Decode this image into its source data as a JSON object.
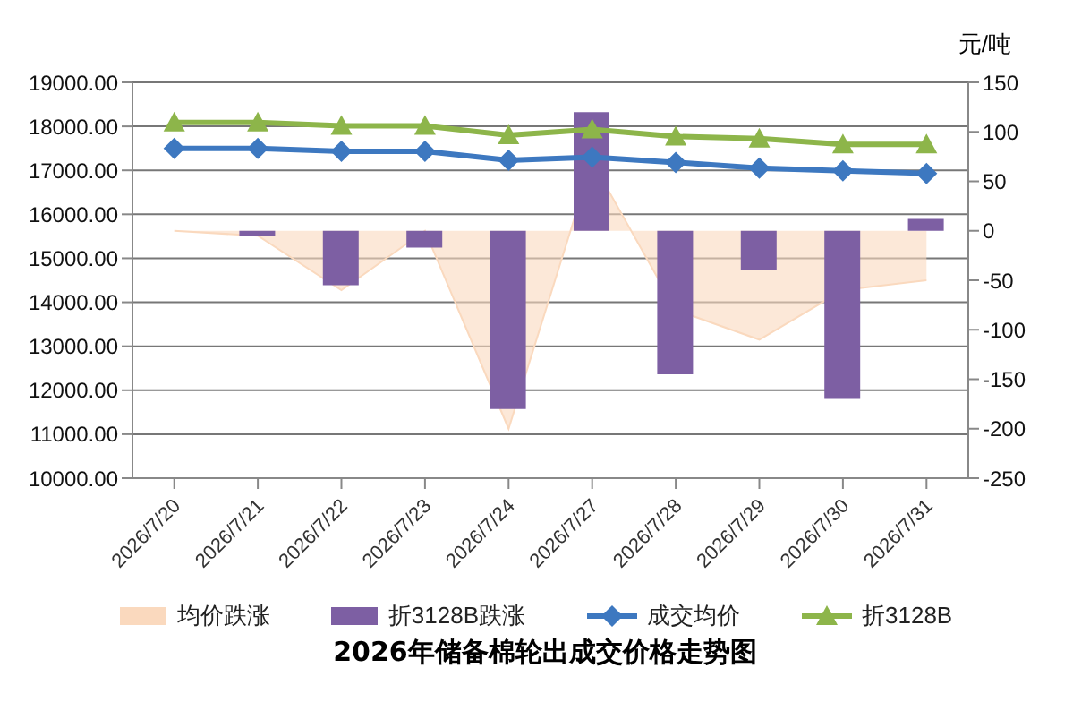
{
  "chart_data": {
    "type": "bar",
    "title": "2026年储备棉轮出成交价格走势图",
    "y2label": "元/吨",
    "categories": [
      "2026/7/20",
      "2026/7/21",
      "2026/7/22",
      "2026/7/23",
      "2026/7/24",
      "2026/7/27",
      "2026/7/28",
      "2026/7/29",
      "2026/7/30",
      "2026/7/31"
    ],
    "series": [
      {
        "name": "均价跌涨",
        "type": "area",
        "axis": "y2",
        "color": "#fad9be",
        "values": [
          0,
          -5,
          -60,
          0,
          -200,
          70,
          -80,
          -110,
          -60,
          -50
        ]
      },
      {
        "name": "折3128B跌涨",
        "axis": "y2",
        "color": "#7d5fa3",
        "values": [
          0,
          -5,
          -55,
          -17,
          -180,
          120,
          -145,
          -40,
          -170,
          12
        ]
      },
      {
        "name": "成交均价",
        "type": "line",
        "marker": "diamond",
        "color": "#3d78c0",
        "values": [
          17500,
          17500,
          17430,
          17430,
          17230,
          17300,
          17180,
          17050,
          16990,
          16930
        ]
      },
      {
        "name": "折3128B",
        "type": "line",
        "marker": "triangle",
        "color": "#8db54a",
        "values": [
          18090,
          18090,
          18010,
          18010,
          17800,
          17930,
          17770,
          17720,
          17590,
          17590
        ]
      }
    ],
    "ylim": [
      10000,
      19000
    ],
    "yticks": [
      {
        "value": 10000,
        "label": "10000.00"
      },
      {
        "value": 11000,
        "label": "11000.00"
      },
      {
        "value": 12000,
        "label": "12000.00"
      },
      {
        "value": 13000,
        "label": "13000.00"
      },
      {
        "value": 14000,
        "label": "14000.00"
      },
      {
        "value": 15000,
        "label": "15000.00"
      },
      {
        "value": 16000,
        "label": "16000.00"
      },
      {
        "value": 17000,
        "label": "17000.00"
      },
      {
        "value": 18000,
        "label": "18000.00"
      },
      {
        "value": 19000,
        "label": "19000.00"
      }
    ],
    "y2lim": [
      -250,
      150
    ],
    "y2ticks": [
      -250,
      -200,
      -150,
      -100,
      -50,
      0,
      50,
      100,
      150
    ],
    "grid": "y",
    "legend": "bottom"
  }
}
